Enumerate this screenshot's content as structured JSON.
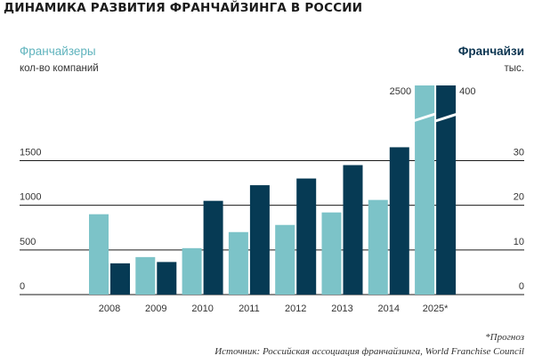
{
  "title": "ДИНАМИКА РАЗВИТИЯ ФРАНЧАЙЗИНГА В РОССИИ",
  "left_axis": {
    "series_label": "Франчайзеры",
    "unit": "кол-во компаний"
  },
  "right_axis": {
    "series_label": "Франчайзи",
    "unit": "тыс."
  },
  "footnote": "*Прогноз",
  "source": "Источник: Российская ассоциация франчайзинга, World Franchise Council",
  "colors": {
    "franchisors": "#7cc3c8",
    "franchisees": "#063a54",
    "grid": "#1a1a1a",
    "left_label": "#5fb3bd",
    "right_label": "#0b3450"
  },
  "chart_data": {
    "type": "bar",
    "title": "ДИНАМИКА РАЗВИТИЯ ФРАНЧАЙЗИНГА В РОССИИ",
    "categories": [
      "2008",
      "2009",
      "2010",
      "2011",
      "2012",
      "2013",
      "2014",
      "2025*"
    ],
    "series": [
      {
        "name": "Франчайзеры",
        "axis": "left",
        "values": [
          900,
          420,
          520,
          700,
          780,
          920,
          1060,
          2500
        ]
      },
      {
        "name": "Франчайзи",
        "axis": "right",
        "values": [
          7,
          7.3,
          21,
          24.5,
          26,
          29,
          33,
          400
        ]
      }
    ],
    "left_axis": {
      "label": "кол-во компаний",
      "ticks": [
        0,
        500,
        1000,
        1500
      ],
      "broken_top_label": "2500",
      "ylim": [
        0,
        1500
      ]
    },
    "right_axis": {
      "label": "тыс.",
      "ticks": [
        0,
        10,
        20,
        30
      ],
      "broken_top_label": "400",
      "ylim": [
        0,
        30
      ]
    },
    "axis_break": true,
    "grid": true,
    "legend": "axis titles"
  }
}
